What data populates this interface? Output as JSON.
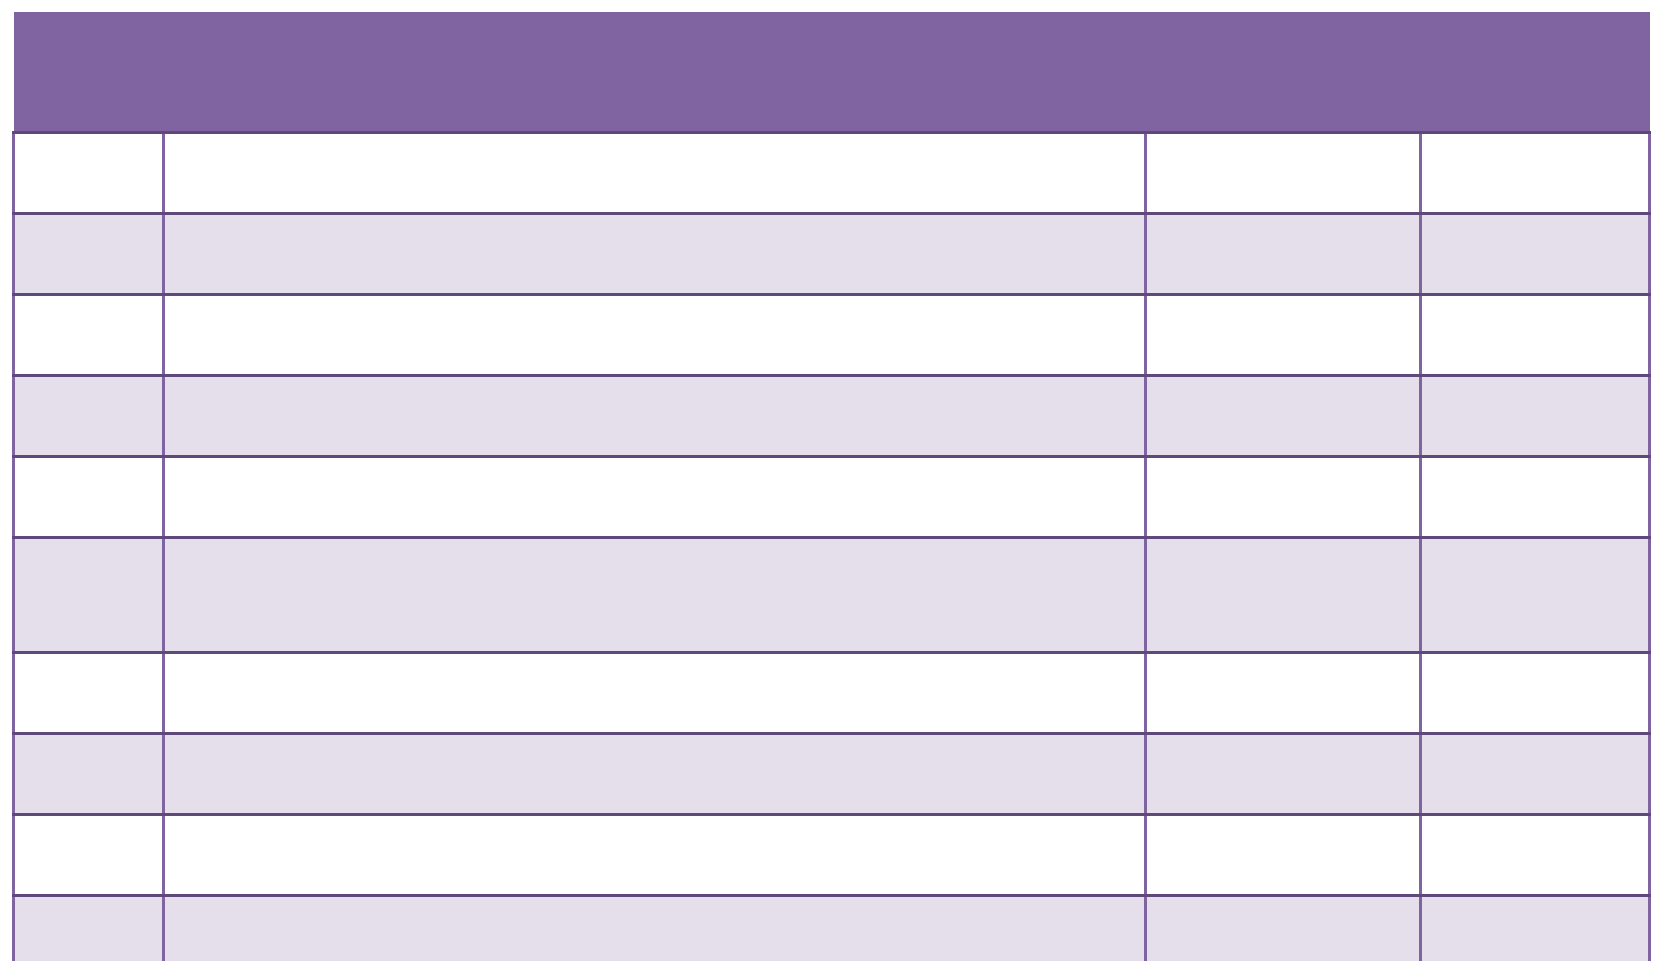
{
  "table": {
    "header": {
      "label": ""
    },
    "column_count": 4,
    "row_count": 10,
    "rows": [
      {
        "cells": [
          "",
          "",
          "",
          ""
        ]
      },
      {
        "cells": [
          "",
          "",
          "",
          ""
        ]
      },
      {
        "cells": [
          "",
          "",
          "",
          ""
        ]
      },
      {
        "cells": [
          "",
          "",
          "",
          ""
        ]
      },
      {
        "cells": [
          "",
          "",
          "",
          ""
        ]
      },
      {
        "cells": [
          "",
          "",
          "",
          ""
        ]
      },
      {
        "cells": [
          "",
          "",
          "",
          ""
        ]
      },
      {
        "cells": [
          "",
          "",
          "",
          ""
        ]
      },
      {
        "cells": [
          "",
          "",
          "",
          ""
        ]
      },
      {
        "cells": [
          "",
          "",
          "",
          ""
        ]
      }
    ],
    "colors": {
      "header_fill": "#8064A2",
      "horizontal_border": "#5F497A",
      "vertical_border": "#8064A2",
      "band_fill": "#E5DFEC",
      "plain_fill": "#FFFFFF",
      "page_background": "#FFFFFF"
    }
  }
}
